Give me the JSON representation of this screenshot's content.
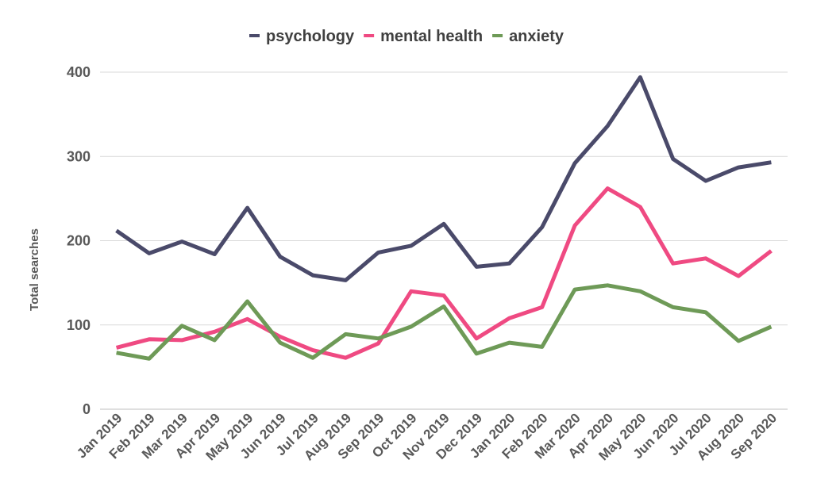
{
  "chart_data": {
    "type": "line",
    "title": "",
    "xlabel": "",
    "ylabel": "Total searches",
    "ylim": [
      0,
      400
    ],
    "yticks": [
      0,
      100,
      200,
      300,
      400
    ],
    "grid": true,
    "legend_position": "top",
    "categories": [
      "Jan 2019",
      "Feb 2019",
      "Mar 2019",
      "Apr 2019",
      "May 2019",
      "Jun 2019",
      "Jul 2019",
      "Aug 2019",
      "Sep 2019",
      "Oct 2019",
      "Nov 2019",
      "Dec 2019",
      "Jan 2020",
      "Feb 2020",
      "Mar 2020",
      "Apr 2020",
      "May 2020",
      "Jun 2020",
      "Jul 2020",
      "Aug 2020",
      "Sep 2020"
    ],
    "series": [
      {
        "name": "psychology",
        "color": "#4a4a6a",
        "values": [
          212,
          185,
          199,
          184,
          239,
          181,
          159,
          153,
          186,
          194,
          220,
          169,
          173,
          216,
          292,
          336,
          394,
          297,
          271,
          287,
          293
        ]
      },
      {
        "name": "mental health",
        "color": "#ef4a82",
        "values": [
          73,
          83,
          82,
          92,
          107,
          86,
          70,
          61,
          78,
          140,
          135,
          84,
          108,
          121,
          218,
          262,
          240,
          173,
          179,
          158,
          188
        ]
      },
      {
        "name": "anxiety",
        "color": "#6e9a57",
        "values": [
          67,
          60,
          99,
          82,
          128,
          79,
          61,
          89,
          84,
          98,
          122,
          66,
          79,
          74,
          142,
          147,
          140,
          121,
          115,
          81,
          98
        ]
      }
    ]
  }
}
